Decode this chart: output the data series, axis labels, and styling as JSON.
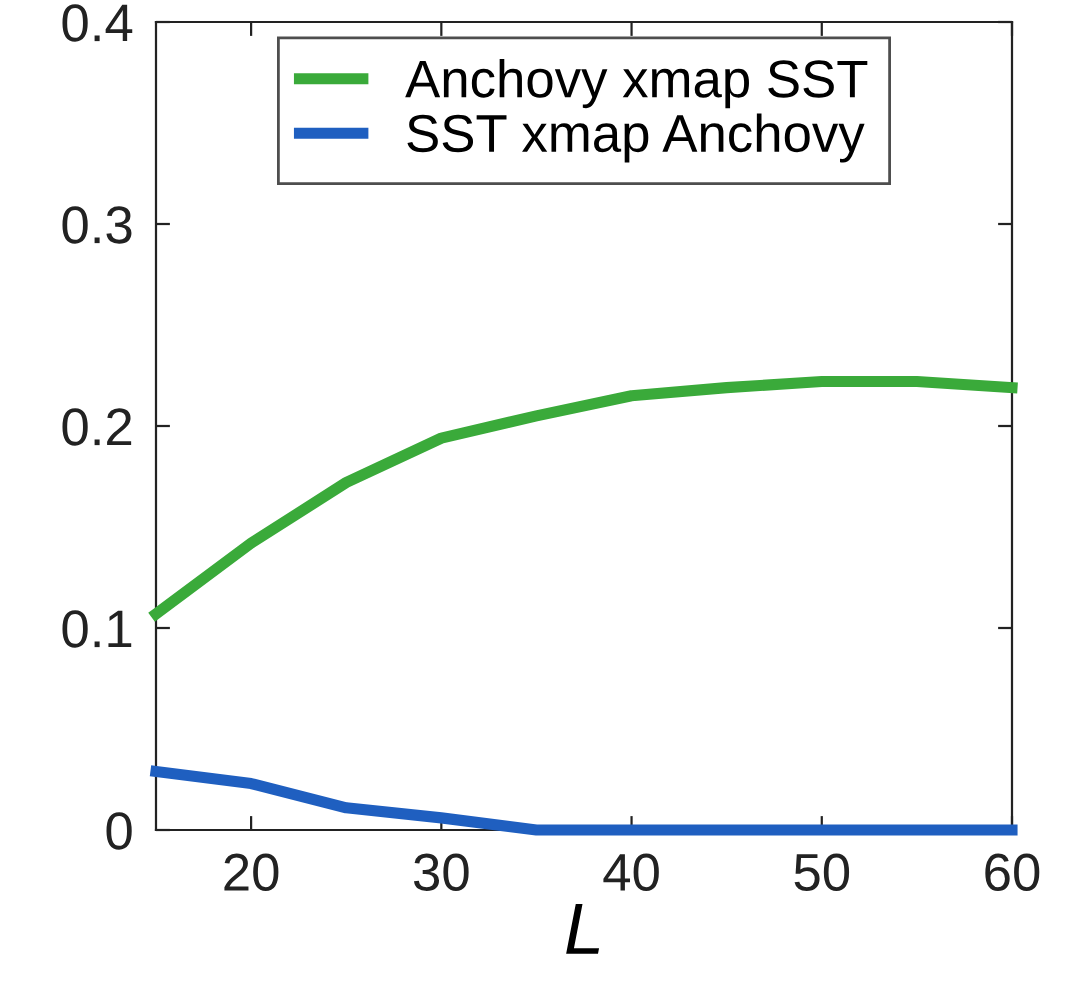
{
  "chart_data": {
    "type": "line",
    "xlabel": "L",
    "x": [
      15,
      20,
      25,
      30,
      35,
      40,
      45,
      50,
      55,
      60
    ],
    "series": [
      {
        "name": "Anchovy xmap SST",
        "color": "#3aaa3a",
        "values": [
          0.107,
          0.142,
          0.172,
          0.194,
          0.205,
          0.215,
          0.219,
          0.222,
          0.222,
          0.219
        ]
      },
      {
        "name": "SST xmap Anchovy",
        "color": "#1f5fc0",
        "values": [
          0.029,
          0.023,
          0.011,
          0.006,
          0,
          0,
          0,
          0,
          0,
          0
        ]
      }
    ],
    "xlim": [
      15,
      60
    ],
    "xticks": [
      20,
      30,
      40,
      50,
      60
    ],
    "ylim": [
      0,
      0.4
    ],
    "yticks": [
      0,
      0.1,
      0.2,
      0.3,
      0.4
    ],
    "grid": false,
    "legend": "top",
    "marker": "none",
    "line_style": "solid"
  }
}
